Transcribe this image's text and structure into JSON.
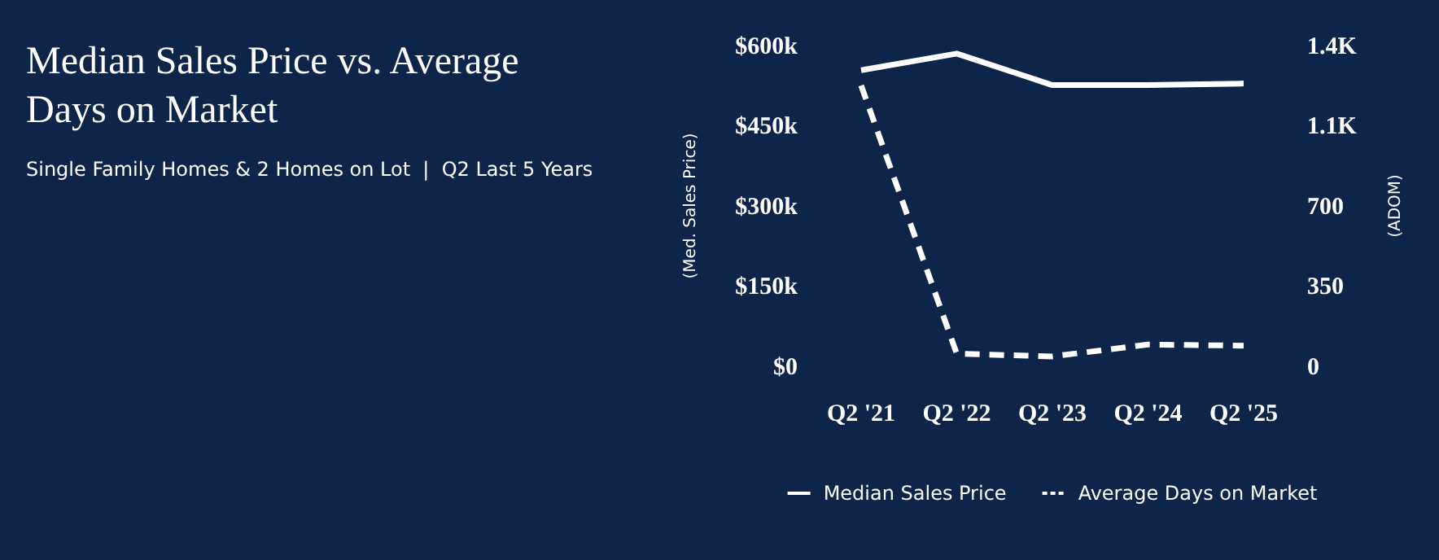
{
  "chart_data": {
    "type": "line",
    "title": "Median Sales Price vs. Average Days on Market",
    "subtitle": "Single Family Homes & 2 Homes on Lot  |  Q2 Last 5 Years",
    "ylabel": "(Med. Sales Price)",
    "y2label": "(ADOM)",
    "categories": [
      "Q2 '21",
      "Q2 '22",
      "Q2 '23",
      "Q2 '24",
      "Q2 '25"
    ],
    "series": [
      {
        "name": "Median Sales Price",
        "color": "#ffffff",
        "line_style": "solid",
        "values": [
          554000,
          585000,
          526000,
          526000,
          529000
        ]
      },
      {
        "name": "Average Days on Market",
        "color": "#ffffff",
        "line_style": "dashed",
        "axis": "y2",
        "values": [
          1226,
          55,
          43,
          95,
          90
        ]
      }
    ],
    "ylim": [
      0,
      600000
    ],
    "yticks": [
      {
        "value": 0,
        "label": "$0"
      },
      {
        "value": 150000,
        "label": "$150k"
      },
      {
        "value": 300000,
        "label": "$300k"
      },
      {
        "value": 450000,
        "label": "$450k"
      },
      {
        "value": 600000,
        "label": "$600k"
      }
    ],
    "y2lim": [
      0,
      1400
    ],
    "y2ticks": [
      0,
      350,
      700,
      {
        "value": 1050,
        "label": "1.1K"
      },
      {
        "value": 1400,
        "label": "1.4K"
      }
    ],
    "grid": false,
    "legend": "bottom",
    "marker": "none"
  }
}
